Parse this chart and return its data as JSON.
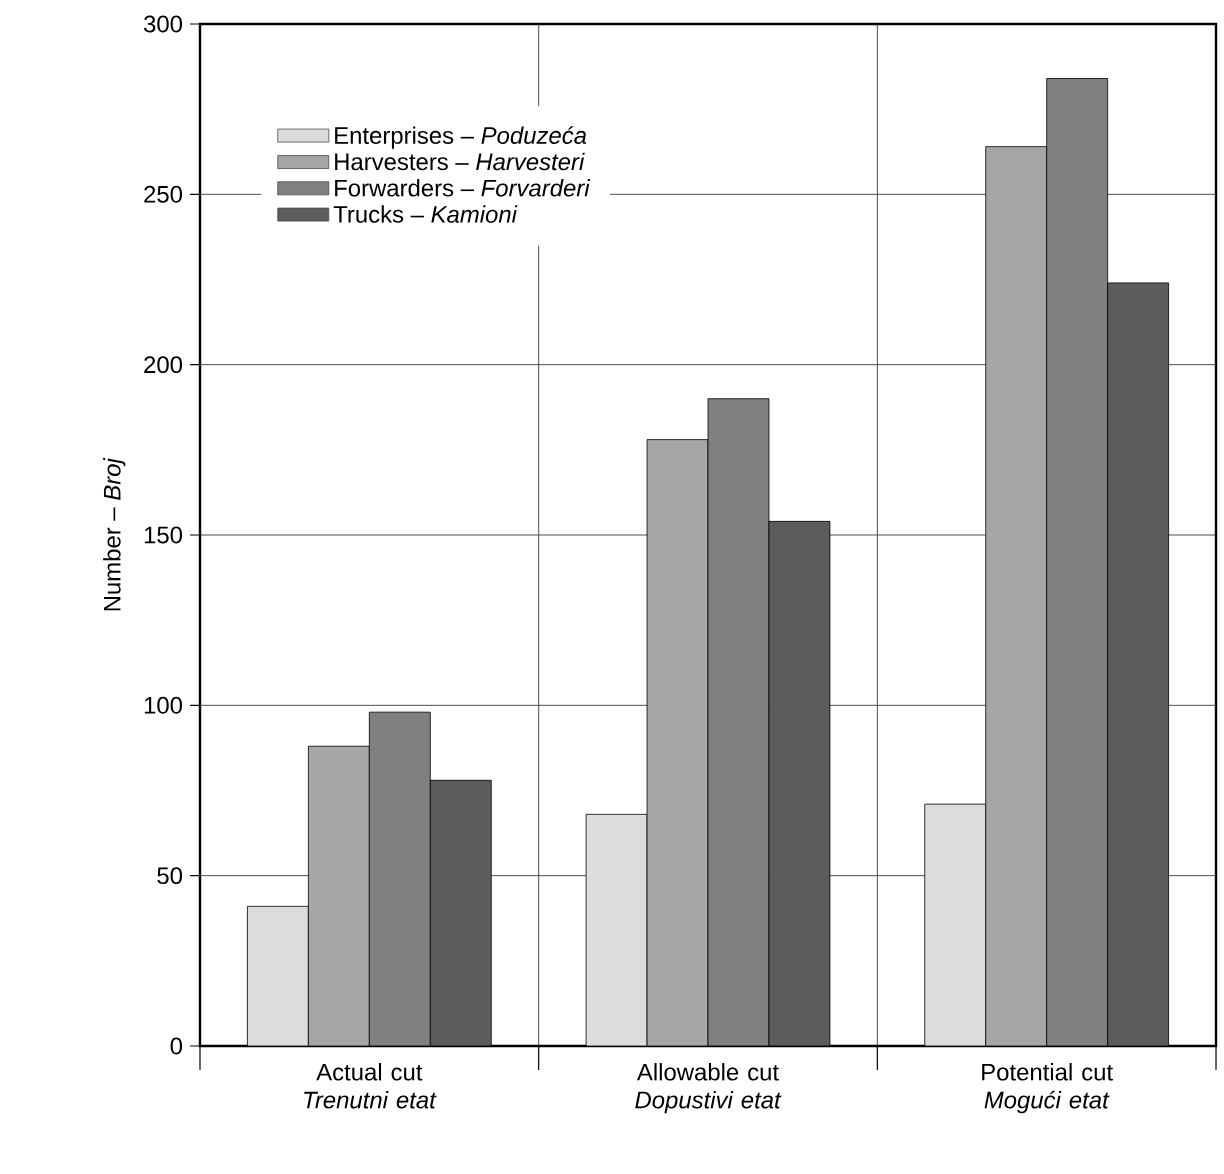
{
  "chart_data": {
    "type": "bar",
    "ylabel": "Number – *Broj*",
    "categories": [
      "Actual cut *Trenutni etat*",
      "Allowable cut *Dopustivi  etat*",
      "Potential cut *Mogući etat*"
    ],
    "series": [
      {
        "name": "Enterprises – *Poduzeća*",
        "color": "#dcdcdc",
        "values": [
          41,
          68,
          71
        ]
      },
      {
        "name": "Harvesters – *Harvesteri*",
        "color": "#a6a6a6",
        "values": [
          88,
          178,
          264
        ]
      },
      {
        "name": "Forwarders – *Forvarderi*",
        "color": "#808080",
        "values": [
          98,
          190,
          284
        ]
      },
      {
        "name": "Trucks – *Kamioni*",
        "color": "#5c5c5c",
        "values": [
          78,
          154,
          224
        ]
      }
    ],
    "ylim": [
      0,
      300
    ],
    "yticks": [
      0,
      50,
      100,
      150,
      200,
      250,
      300
    ],
    "grid": true,
    "legend": "top left"
  }
}
